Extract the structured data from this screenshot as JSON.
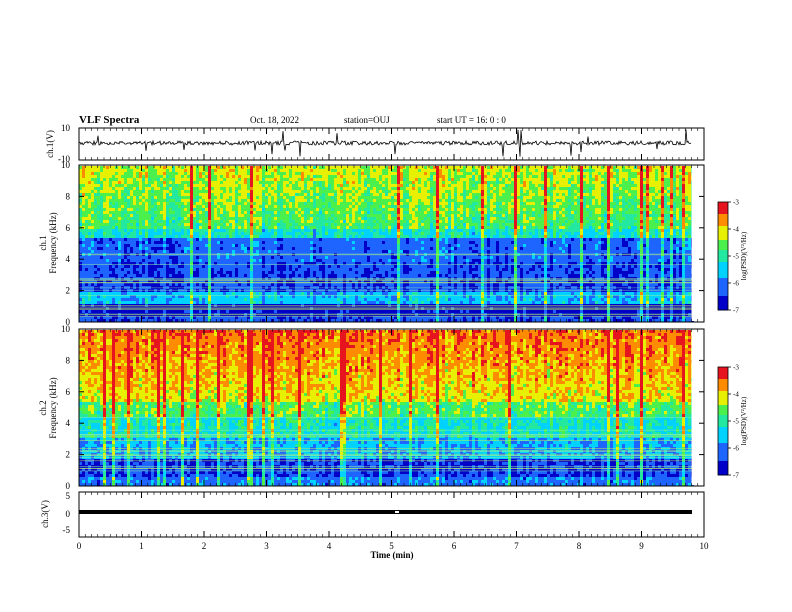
{
  "header": {
    "title": "VLF Spectra",
    "date": "Oct. 18, 2022",
    "station": "station=OUJ",
    "start": "start  UT =   16: 0  : 0"
  },
  "chart_data": [
    {
      "type": "line",
      "ylabel": "ch.1(V)",
      "ylim": [
        -10,
        10
      ],
      "yticks": [
        "10",
        "-10"
      ],
      "xlim": [
        0,
        10
      ],
      "baseline": 0,
      "color": "#000000"
    },
    {
      "type": "heatmap",
      "ylabel": "Frequency (kHz)",
      "ylabel2": "ch.1",
      "ylim": [
        0,
        10
      ],
      "yticks": [
        "0",
        "2",
        "4",
        "6",
        "8",
        "10"
      ],
      "xlim": [
        0,
        10
      ],
      "data_end_min": 9.8,
      "colorbar": {
        "label": "log(PSD)(V²/Hz)",
        "ticks": [
          "-3",
          "-4",
          "-5",
          "-6",
          "-7"
        ],
        "range": [
          -7,
          -3
        ]
      }
    },
    {
      "type": "heatmap",
      "ylabel": "Frequency (kHz)",
      "ylabel2": "ch.2",
      "ylim": [
        0,
        10
      ],
      "yticks": [
        "0",
        "2",
        "4",
        "6",
        "8",
        "10"
      ],
      "xlim": [
        0,
        10
      ],
      "data_end_min": 9.8,
      "colorbar": {
        "label": "log(PSD)(V²/Hz)",
        "ticks": [
          "-3",
          "-4",
          "-5",
          "-6",
          "-7"
        ],
        "range": [
          -7,
          -3
        ]
      }
    },
    {
      "type": "line",
      "ylabel": "ch.3(V)",
      "ylim": [
        -5,
        5
      ],
      "yticks": [
        "5",
        "0",
        "-5"
      ],
      "xlim": [
        0,
        10
      ],
      "baseline": 0,
      "color": "#000000"
    }
  ],
  "xaxis": {
    "label": "Time (min)",
    "ticks": [
      "0",
      "1",
      "2",
      "3",
      "4",
      "5",
      "6",
      "7",
      "8",
      "9",
      "10"
    ]
  }
}
